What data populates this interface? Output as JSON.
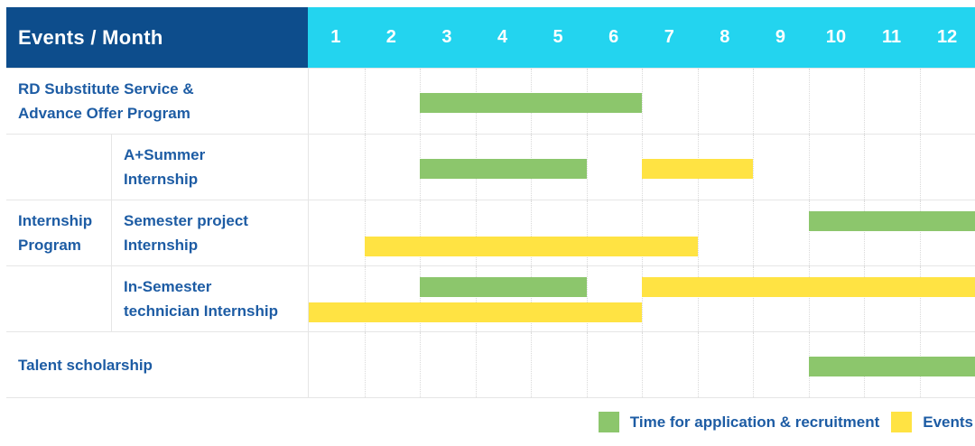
{
  "header": {
    "title": "Events / Month",
    "months": [
      "1",
      "2",
      "3",
      "4",
      "5",
      "6",
      "7",
      "8",
      "9",
      "10",
      "11",
      "12"
    ]
  },
  "group": {
    "name": "internship-program",
    "label_lines": [
      "Internship",
      "Program"
    ]
  },
  "rows": [
    {
      "name": "rd-substitute-service",
      "label_lines": [
        "RD Substitute Service &",
        "Advance Offer Program"
      ],
      "group_member": false,
      "bars": [
        {
          "type": "application",
          "start_month": 3,
          "end_month": 6,
          "lane": "single"
        }
      ]
    },
    {
      "name": "a-plus-summer-internship",
      "label_lines": [
        "A+Summer",
        "Internship"
      ],
      "group_member": true,
      "bars": [
        {
          "type": "application",
          "start_month": 3,
          "end_month": 5,
          "lane": "single"
        },
        {
          "type": "event",
          "start_month": 7,
          "end_month": 8,
          "lane": "single"
        }
      ]
    },
    {
      "name": "semester-project-internship",
      "label_lines": [
        "Semester project",
        "Internship"
      ],
      "group_member": true,
      "bars": [
        {
          "type": "application",
          "start_month": 10,
          "end_month": 12,
          "lane": "top"
        },
        {
          "type": "event",
          "start_month": 2,
          "end_month": 7,
          "lane": "bottom"
        }
      ]
    },
    {
      "name": "in-semester-technician-internship",
      "label_lines": [
        "In-Semester",
        "technician Internship"
      ],
      "group_member": true,
      "bars": [
        {
          "type": "application",
          "start_month": 3,
          "end_month": 5,
          "lane": "top"
        },
        {
          "type": "event",
          "start_month": 7,
          "end_month": 12,
          "lane": "top"
        },
        {
          "type": "event",
          "start_month": 1,
          "end_month": 6,
          "lane": "bottom"
        }
      ]
    },
    {
      "name": "talent-scholarship",
      "label_lines": [
        "Talent scholarship"
      ],
      "group_member": false,
      "bars": [
        {
          "type": "application",
          "start_month": 10,
          "end_month": 12,
          "lane": "single"
        }
      ]
    }
  ],
  "legend": [
    {
      "type": "application",
      "label": "Time for application & recruitment"
    },
    {
      "type": "event",
      "label": "Events"
    }
  ],
  "colors": {
    "application": "#8cc66c",
    "event": "#ffe343",
    "header_bg": "#0d4d8c",
    "month_header_bg": "#23d4ef",
    "label_text": "#1d5ca4",
    "header_text": "#ffffff",
    "grid_border": "#e6e6e6"
  },
  "chart_data": {
    "type": "bar",
    "subtype": "gantt",
    "title": "Events / Month",
    "xlabel": "Month",
    "x_ticks": [
      1,
      2,
      3,
      4,
      5,
      6,
      7,
      8,
      9,
      10,
      11,
      12
    ],
    "xlim": [
      1,
      12
    ],
    "grid": true,
    "legend_position": "bottom-right",
    "series": [
      {
        "name": "Time for application & recruitment",
        "color": "#8cc66c"
      },
      {
        "name": "Events",
        "color": "#ffe343"
      }
    ],
    "tasks": [
      {
        "name": "RD Substitute Service & Advance Offer Program",
        "group": null,
        "application_recruitment_months": [
          [
            3,
            6
          ]
        ],
        "events_months": []
      },
      {
        "name": "A+Summer Internship",
        "group": "Internship Program",
        "application_recruitment_months": [
          [
            3,
            5
          ]
        ],
        "events_months": [
          [
            7,
            8
          ]
        ]
      },
      {
        "name": "Semester project Internship",
        "group": "Internship Program",
        "application_recruitment_months": [
          [
            10,
            12
          ]
        ],
        "events_months": [
          [
            2,
            7
          ]
        ]
      },
      {
        "name": "In-Semester technician Internship",
        "group": "Internship Program",
        "application_recruitment_months": [
          [
            3,
            5
          ]
        ],
        "events_months": [
          [
            1,
            6
          ],
          [
            7,
            12
          ]
        ]
      },
      {
        "name": "Talent scholarship",
        "group": null,
        "application_recruitment_months": [
          [
            10,
            12
          ]
        ],
        "events_months": []
      }
    ]
  }
}
